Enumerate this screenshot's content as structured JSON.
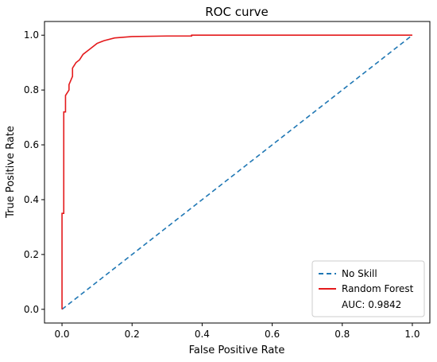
{
  "chart_data": {
    "type": "line",
    "title": "ROC curve",
    "xlabel": "False Positive Rate",
    "ylabel": "True Positive Rate",
    "xlim": [
      -0.05,
      1.05
    ],
    "ylim": [
      -0.05,
      1.05
    ],
    "xticks": [
      0.0,
      0.2,
      0.4,
      0.6,
      0.8,
      1.0
    ],
    "yticks": [
      0.0,
      0.2,
      0.4,
      0.6,
      0.8,
      1.0
    ],
    "xtick_labels": [
      "0.0",
      "0.2",
      "0.4",
      "0.6",
      "0.8",
      "1.0"
    ],
    "ytick_labels": [
      "0.0",
      "0.2",
      "0.4",
      "0.6",
      "0.8",
      "1.0"
    ],
    "grid": false,
    "legend_position": "lower-right",
    "series": [
      {
        "name": "No Skill",
        "color": "#1f77b4",
        "style": "dashed",
        "x": [
          0.0,
          1.0
        ],
        "y": [
          0.0,
          1.0
        ]
      },
      {
        "name": "Random Forest",
        "color": "#e41a1c",
        "style": "solid",
        "x": [
          0.0,
          0.0,
          0.005,
          0.005,
          0.01,
          0.01,
          0.02,
          0.02,
          0.03,
          0.03,
          0.04,
          0.05,
          0.06,
          0.08,
          0.1,
          0.12,
          0.15,
          0.2,
          0.3,
          0.37,
          0.37,
          1.0
        ],
        "y": [
          0.0,
          0.35,
          0.35,
          0.72,
          0.72,
          0.78,
          0.8,
          0.82,
          0.85,
          0.88,
          0.9,
          0.91,
          0.93,
          0.95,
          0.97,
          0.98,
          0.99,
          0.995,
          0.997,
          0.997,
          1.0,
          1.0
        ]
      }
    ],
    "annotations": [
      "AUC: 0.9842"
    ]
  }
}
